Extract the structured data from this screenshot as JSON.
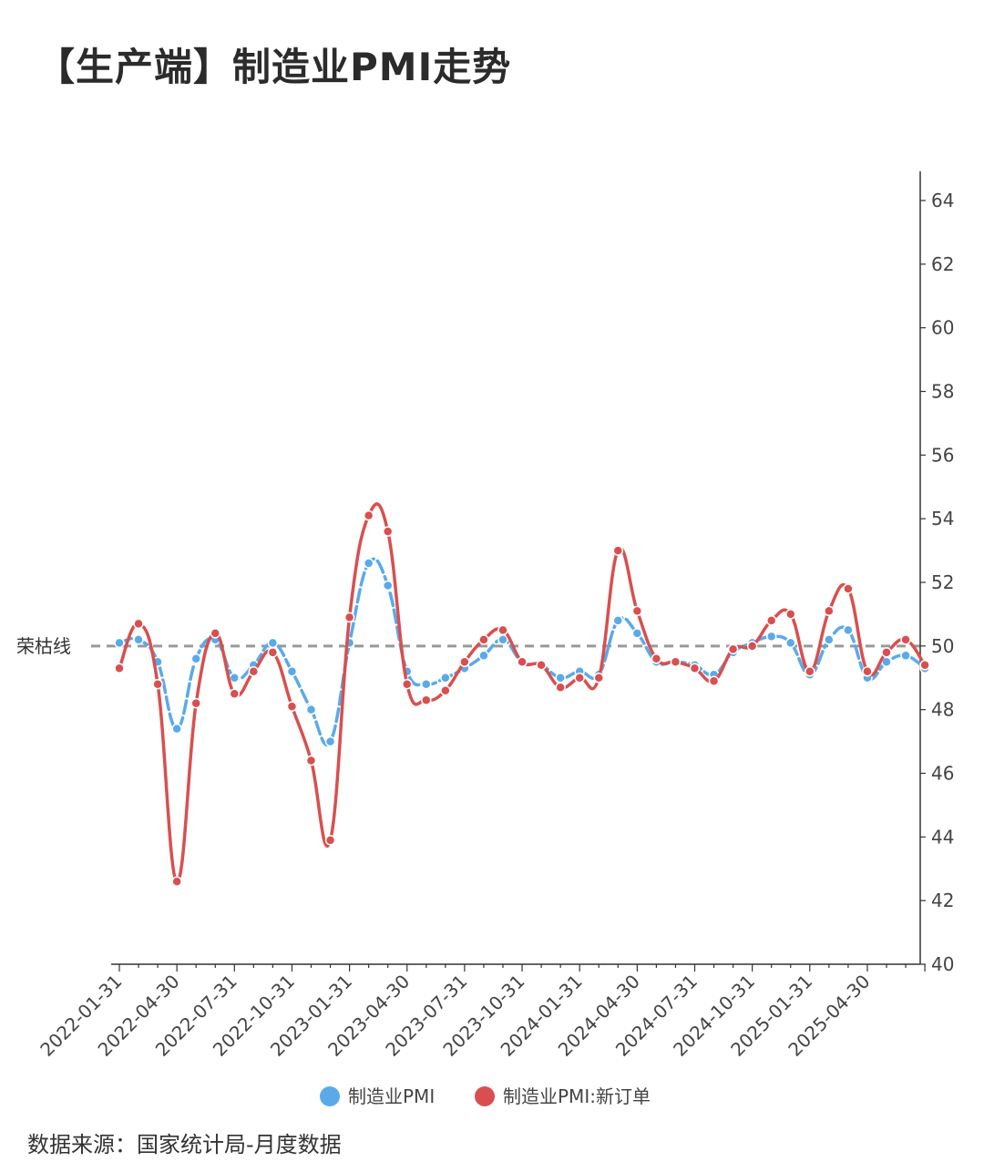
{
  "title": "【生产端】制造业PMI走势",
  "source": "数据来源：国家统计局-月度数据",
  "chart_data": {
    "type": "line",
    "title": "【生产端】制造业PMI走势",
    "ylim": [
      40,
      64
    ],
    "yticks": [
      40,
      42,
      44,
      46,
      48,
      50,
      52,
      54,
      56,
      58,
      60,
      62,
      64
    ],
    "y_axis_position": "right",
    "x_tick_labels": [
      "2022-01-31",
      "2022-04-30",
      "2022-07-31",
      "2022-10-31",
      "2023-01-31",
      "2023-04-30",
      "2023-07-31",
      "2023-10-31",
      "2024-01-31",
      "2024-04-30",
      "2024-07-31",
      "2024-10-31",
      "2025-01-31",
      "2025-04-30"
    ],
    "reference_line": {
      "value": 50,
      "label": "荣枯线",
      "color": "#999999"
    },
    "legend_position": "bottom",
    "x": [
      "2022-01",
      "2022-02",
      "2022-03",
      "2022-04",
      "2022-05",
      "2022-06",
      "2022-07",
      "2022-08",
      "2022-09",
      "2022-10",
      "2022-11",
      "2022-12",
      "2023-01",
      "2023-02",
      "2023-03",
      "2023-04",
      "2023-05",
      "2023-06",
      "2023-07",
      "2023-08",
      "2023-09",
      "2023-10",
      "2023-11",
      "2023-12",
      "2024-01",
      "2024-02",
      "2024-03",
      "2024-04",
      "2024-05",
      "2024-06",
      "2024-07",
      "2024-08",
      "2024-09",
      "2024-10",
      "2024-11",
      "2024-12",
      "2025-01",
      "2025-02",
      "2025-03",
      "2025-04",
      "2025-05",
      "2025-06",
      "2025-07"
    ],
    "series": [
      {
        "name": "制造业PMI",
        "color": "#5aaaea",
        "values": [
          50.1,
          50.2,
          49.5,
          47.4,
          49.6,
          50.2,
          49.0,
          49.4,
          50.1,
          49.2,
          48.0,
          47.0,
          50.1,
          52.6,
          51.9,
          49.2,
          48.8,
          49.0,
          49.3,
          49.7,
          50.2,
          49.5,
          49.4,
          49.0,
          49.2,
          49.1,
          50.8,
          50.4,
          49.5,
          49.5,
          49.4,
          49.1,
          49.8,
          50.1,
          50.3,
          50.1,
          49.1,
          50.2,
          50.5,
          49.0,
          49.5,
          49.7,
          49.3
        ]
      },
      {
        "name": "制造业PMI:新订单",
        "color": "#d94f4f",
        "values": [
          49.3,
          50.7,
          48.8,
          42.6,
          48.2,
          50.4,
          48.5,
          49.2,
          49.8,
          48.1,
          46.4,
          43.9,
          50.9,
          54.1,
          53.6,
          48.8,
          48.3,
          48.6,
          49.5,
          50.2,
          50.5,
          49.5,
          49.4,
          48.7,
          49.0,
          49.0,
          53.0,
          51.1,
          49.6,
          49.5,
          49.3,
          48.9,
          49.9,
          50.0,
          50.8,
          51.0,
          49.2,
          51.1,
          51.8,
          49.2,
          49.8,
          50.2,
          49.4
        ]
      }
    ]
  }
}
